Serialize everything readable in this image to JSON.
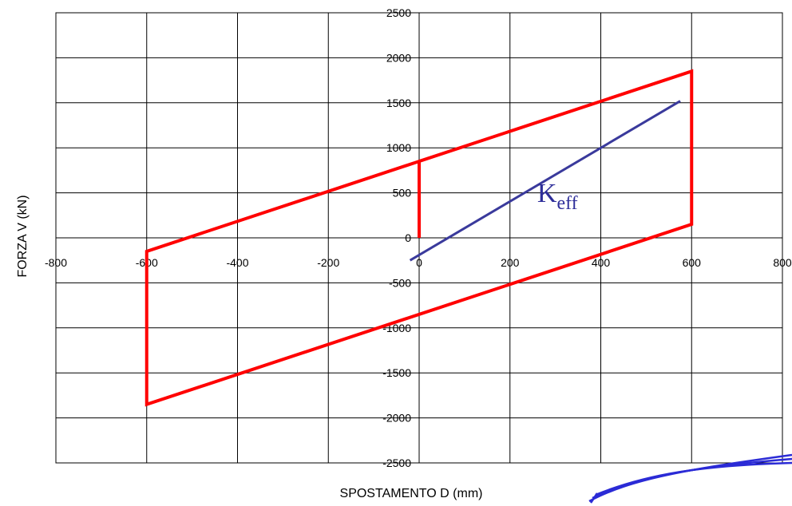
{
  "chart_data": {
    "type": "line",
    "title": "",
    "xlabel": "SPOSTAMENTO D (mm)",
    "ylabel": "FORZA V (kN)",
    "xlim": [
      -800,
      800
    ],
    "ylim": [
      -2500,
      2500
    ],
    "x_ticks": [
      "-800",
      "-600",
      "-400",
      "-200",
      "0",
      "200",
      "400",
      "600",
      "800"
    ],
    "y_ticks": [
      "2500",
      "2000",
      "1500",
      "1000",
      "500",
      "0",
      "-500",
      "-1000",
      "-1500",
      "-2000",
      "-2500"
    ],
    "grid": true,
    "legend": "none",
    "series": [
      {
        "color": "#ff0000",
        "points": [
          [
            0,
            0
          ],
          [
            0,
            850
          ],
          [
            600,
            1850
          ],
          [
            600,
            150
          ],
          [
            -600,
            -1850
          ],
          [
            -600,
            -150
          ],
          [
            0,
            850
          ]
        ]
      },
      {
        "color": "#3a3a9c",
        "points": [
          [
            -20,
            -250
          ],
          [
            575,
            1520
          ]
        ]
      }
    ],
    "annotations": [
      {
        "main": "K",
        "sub": "eff",
        "x": 260,
        "y": 400,
        "color": "#3a3a9c"
      }
    ]
  }
}
